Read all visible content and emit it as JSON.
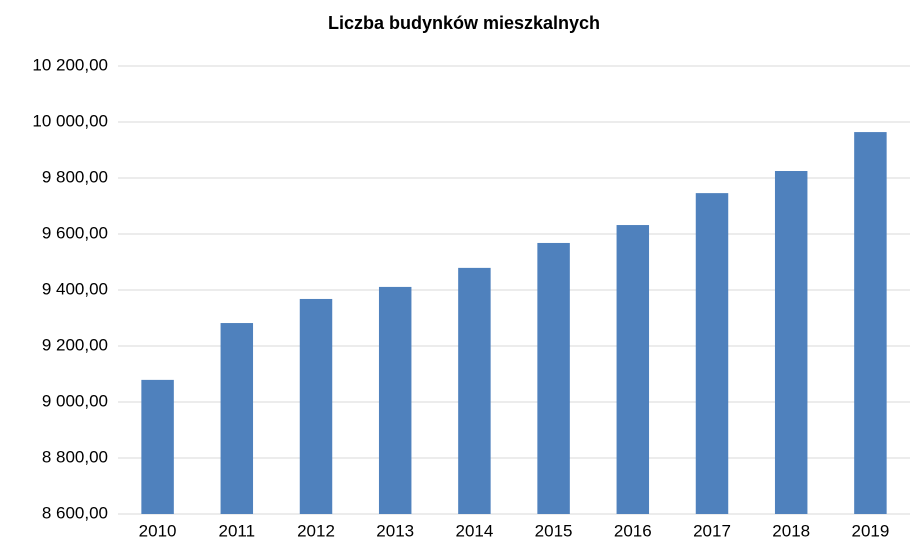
{
  "chart_data": {
    "type": "bar",
    "title": "Liczba budynków mieszkalnych",
    "categories": [
      "2010",
      "2011",
      "2012",
      "2013",
      "2014",
      "2015",
      "2016",
      "2017",
      "2018",
      "2019"
    ],
    "values": [
      9079,
      9282,
      9368,
      9411,
      9479,
      9568,
      9632,
      9746,
      9825,
      9964
    ],
    "color": "#4f81bd",
    "ylim": [
      8600,
      10200
    ],
    "yticks": [
      {
        "value": 8600,
        "label": "8 600,00"
      },
      {
        "value": 8800,
        "label": "8 800,00"
      },
      {
        "value": 9000,
        "label": "9 000,00"
      },
      {
        "value": 9200,
        "label": "9 200,00"
      },
      {
        "value": 9400,
        "label": "9 400,00"
      },
      {
        "value": 9600,
        "label": "9 600,00"
      },
      {
        "value": 9800,
        "label": "9 800,00"
      },
      {
        "value": 10000,
        "label": "10 000,00"
      },
      {
        "value": 10200,
        "label": "10 200,00"
      }
    ],
    "grid": true
  }
}
